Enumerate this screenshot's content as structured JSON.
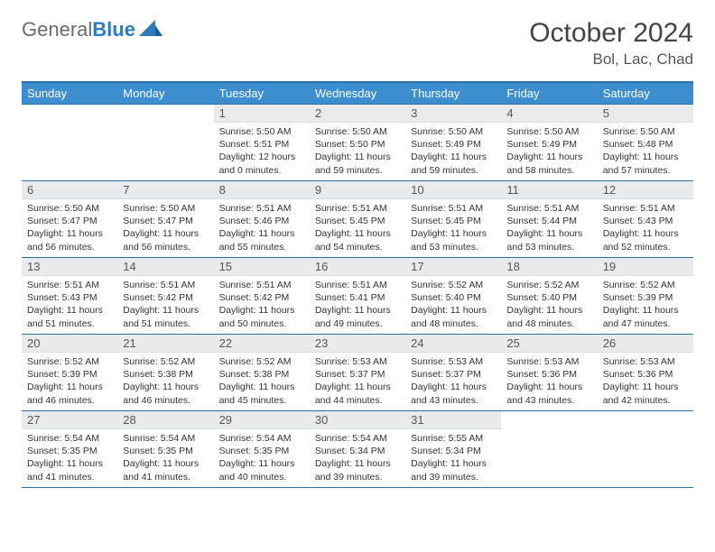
{
  "logo": {
    "part1": "General",
    "part2": "Blue"
  },
  "title": "October 2024",
  "location": "Bol, Lac, Chad",
  "colors": {
    "header_bg": "#3c8ecf",
    "header_border": "#2d6fa3",
    "daynum_bg": "#e9eaec",
    "logo_gray": "#6b6b6b",
    "logo_blue": "#2b7bbf"
  },
  "daysOfWeek": [
    "Sunday",
    "Monday",
    "Tuesday",
    "Wednesday",
    "Thursday",
    "Friday",
    "Saturday"
  ],
  "weeks": [
    [
      {
        "n": "",
        "sr": "",
        "ss": "",
        "dl": ""
      },
      {
        "n": "",
        "sr": "",
        "ss": "",
        "dl": ""
      },
      {
        "n": "1",
        "sr": "Sunrise: 5:50 AM",
        "ss": "Sunset: 5:51 PM",
        "dl": "Daylight: 12 hours and 0 minutes."
      },
      {
        "n": "2",
        "sr": "Sunrise: 5:50 AM",
        "ss": "Sunset: 5:50 PM",
        "dl": "Daylight: 11 hours and 59 minutes."
      },
      {
        "n": "3",
        "sr": "Sunrise: 5:50 AM",
        "ss": "Sunset: 5:49 PM",
        "dl": "Daylight: 11 hours and 59 minutes."
      },
      {
        "n": "4",
        "sr": "Sunrise: 5:50 AM",
        "ss": "Sunset: 5:49 PM",
        "dl": "Daylight: 11 hours and 58 minutes."
      },
      {
        "n": "5",
        "sr": "Sunrise: 5:50 AM",
        "ss": "Sunset: 5:48 PM",
        "dl": "Daylight: 11 hours and 57 minutes."
      }
    ],
    [
      {
        "n": "6",
        "sr": "Sunrise: 5:50 AM",
        "ss": "Sunset: 5:47 PM",
        "dl": "Daylight: 11 hours and 56 minutes."
      },
      {
        "n": "7",
        "sr": "Sunrise: 5:50 AM",
        "ss": "Sunset: 5:47 PM",
        "dl": "Daylight: 11 hours and 56 minutes."
      },
      {
        "n": "8",
        "sr": "Sunrise: 5:51 AM",
        "ss": "Sunset: 5:46 PM",
        "dl": "Daylight: 11 hours and 55 minutes."
      },
      {
        "n": "9",
        "sr": "Sunrise: 5:51 AM",
        "ss": "Sunset: 5:45 PM",
        "dl": "Daylight: 11 hours and 54 minutes."
      },
      {
        "n": "10",
        "sr": "Sunrise: 5:51 AM",
        "ss": "Sunset: 5:45 PM",
        "dl": "Daylight: 11 hours and 53 minutes."
      },
      {
        "n": "11",
        "sr": "Sunrise: 5:51 AM",
        "ss": "Sunset: 5:44 PM",
        "dl": "Daylight: 11 hours and 53 minutes."
      },
      {
        "n": "12",
        "sr": "Sunrise: 5:51 AM",
        "ss": "Sunset: 5:43 PM",
        "dl": "Daylight: 11 hours and 52 minutes."
      }
    ],
    [
      {
        "n": "13",
        "sr": "Sunrise: 5:51 AM",
        "ss": "Sunset: 5:43 PM",
        "dl": "Daylight: 11 hours and 51 minutes."
      },
      {
        "n": "14",
        "sr": "Sunrise: 5:51 AM",
        "ss": "Sunset: 5:42 PM",
        "dl": "Daylight: 11 hours and 51 minutes."
      },
      {
        "n": "15",
        "sr": "Sunrise: 5:51 AM",
        "ss": "Sunset: 5:42 PM",
        "dl": "Daylight: 11 hours and 50 minutes."
      },
      {
        "n": "16",
        "sr": "Sunrise: 5:51 AM",
        "ss": "Sunset: 5:41 PM",
        "dl": "Daylight: 11 hours and 49 minutes."
      },
      {
        "n": "17",
        "sr": "Sunrise: 5:52 AM",
        "ss": "Sunset: 5:40 PM",
        "dl": "Daylight: 11 hours and 48 minutes."
      },
      {
        "n": "18",
        "sr": "Sunrise: 5:52 AM",
        "ss": "Sunset: 5:40 PM",
        "dl": "Daylight: 11 hours and 48 minutes."
      },
      {
        "n": "19",
        "sr": "Sunrise: 5:52 AM",
        "ss": "Sunset: 5:39 PM",
        "dl": "Daylight: 11 hours and 47 minutes."
      }
    ],
    [
      {
        "n": "20",
        "sr": "Sunrise: 5:52 AM",
        "ss": "Sunset: 5:39 PM",
        "dl": "Daylight: 11 hours and 46 minutes."
      },
      {
        "n": "21",
        "sr": "Sunrise: 5:52 AM",
        "ss": "Sunset: 5:38 PM",
        "dl": "Daylight: 11 hours and 46 minutes."
      },
      {
        "n": "22",
        "sr": "Sunrise: 5:52 AM",
        "ss": "Sunset: 5:38 PM",
        "dl": "Daylight: 11 hours and 45 minutes."
      },
      {
        "n": "23",
        "sr": "Sunrise: 5:53 AM",
        "ss": "Sunset: 5:37 PM",
        "dl": "Daylight: 11 hours and 44 minutes."
      },
      {
        "n": "24",
        "sr": "Sunrise: 5:53 AM",
        "ss": "Sunset: 5:37 PM",
        "dl": "Daylight: 11 hours and 43 minutes."
      },
      {
        "n": "25",
        "sr": "Sunrise: 5:53 AM",
        "ss": "Sunset: 5:36 PM",
        "dl": "Daylight: 11 hours and 43 minutes."
      },
      {
        "n": "26",
        "sr": "Sunrise: 5:53 AM",
        "ss": "Sunset: 5:36 PM",
        "dl": "Daylight: 11 hours and 42 minutes."
      }
    ],
    [
      {
        "n": "27",
        "sr": "Sunrise: 5:54 AM",
        "ss": "Sunset: 5:35 PM",
        "dl": "Daylight: 11 hours and 41 minutes."
      },
      {
        "n": "28",
        "sr": "Sunrise: 5:54 AM",
        "ss": "Sunset: 5:35 PM",
        "dl": "Daylight: 11 hours and 41 minutes."
      },
      {
        "n": "29",
        "sr": "Sunrise: 5:54 AM",
        "ss": "Sunset: 5:35 PM",
        "dl": "Daylight: 11 hours and 40 minutes."
      },
      {
        "n": "30",
        "sr": "Sunrise: 5:54 AM",
        "ss": "Sunset: 5:34 PM",
        "dl": "Daylight: 11 hours and 39 minutes."
      },
      {
        "n": "31",
        "sr": "Sunrise: 5:55 AM",
        "ss": "Sunset: 5:34 PM",
        "dl": "Daylight: 11 hours and 39 minutes."
      },
      {
        "n": "",
        "sr": "",
        "ss": "",
        "dl": ""
      },
      {
        "n": "",
        "sr": "",
        "ss": "",
        "dl": ""
      }
    ]
  ]
}
